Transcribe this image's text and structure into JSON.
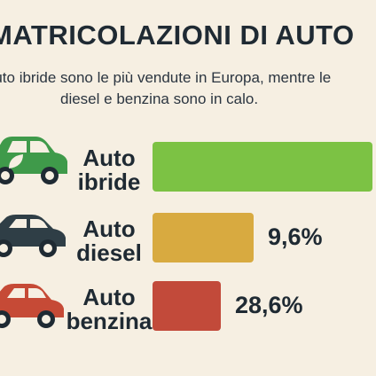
{
  "title": "MATRICOLAZIONI DI AUTO",
  "subtitle_lines": [
    "Auto ibride sono le più vendute in Europa, mentre le",
    "diesel e benzina sono in calo."
  ],
  "chart_data": {
    "type": "bar",
    "orientation": "horizontal",
    "categories": [
      "Auto ibride",
      "Auto diesel",
      "Auto benzina"
    ],
    "category_lines": [
      [
        "Auto",
        "ibride"
      ],
      [
        "Auto",
        "diesel"
      ],
      [
        "Auto",
        "benzina"
      ]
    ],
    "values": [
      null,
      9.6,
      28.6
    ],
    "value_labels": [
      "",
      "9,6%",
      "28,6%"
    ],
    "bar_lengths_relative": [
      1.0,
      0.46,
      0.31
    ],
    "colors": [
      "#7cc244",
      "#d8aa40",
      "#c24a3a"
    ],
    "icons": [
      "hybrid-car-icon",
      "diesel-car-icon",
      "petrol-car-icon"
    ],
    "icon_colors": [
      "#3f9a4a",
      "#2f3e46",
      "#c64a36"
    ]
  }
}
